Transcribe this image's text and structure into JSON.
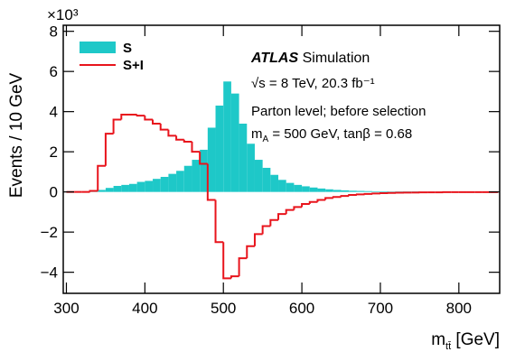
{
  "chart_data": {
    "type": "histogram",
    "y_multiplier": "×10³",
    "xlabel": [
      "m",
      "tt̄",
      " [GeV]"
    ],
    "ylabel": "Events / 10 GeV",
    "annotations": {
      "experiment": "ATLAS",
      "kind": "Simulation",
      "energy": "√s = 8 TeV, 20.3 fb⁻¹",
      "level": "Parton level; before selection",
      "params": [
        "m",
        "A",
        " = 500 GeV, tanβ = 0.68"
      ]
    },
    "bins": [
      300,
      310,
      320,
      330,
      340,
      350,
      360,
      370,
      380,
      390,
      400,
      410,
      420,
      430,
      440,
      450,
      460,
      470,
      480,
      490,
      500,
      510,
      520,
      530,
      540,
      550,
      560,
      570,
      580,
      590,
      600,
      610,
      620,
      630,
      640,
      650,
      660,
      670,
      680,
      690,
      700,
      710,
      720,
      730,
      740,
      750,
      760,
      770,
      780,
      790,
      800,
      810,
      820,
      830,
      840,
      850
    ],
    "series": [
      {
        "name": "S",
        "color": "#1ec8c8",
        "style": "filled",
        "values": [
          0,
          0,
          0,
          0.02,
          0.1,
          0.2,
          0.3,
          0.35,
          0.4,
          0.5,
          0.55,
          0.65,
          0.75,
          0.9,
          1.05,
          1.3,
          1.6,
          2.1,
          3.2,
          4.3,
          5.5,
          4.9,
          3.4,
          2.4,
          1.6,
          1.2,
          0.85,
          0.6,
          0.45,
          0.35,
          0.28,
          0.22,
          0.17,
          0.13,
          0.1,
          0.08,
          0.06,
          0.05,
          0.04,
          0.03,
          0.03,
          0.02,
          0.02,
          0.02,
          0.02,
          0.01,
          0.01,
          0.01,
          0.01,
          0.01,
          0.01,
          0.01,
          0.01,
          0.01,
          0.01
        ]
      },
      {
        "name": "S+I",
        "color": "#e8141c",
        "style": "step",
        "values": [
          0,
          0,
          0,
          0.05,
          1.3,
          2.9,
          3.6,
          3.85,
          3.85,
          3.8,
          3.6,
          3.4,
          3.1,
          2.8,
          2.6,
          2.5,
          2.0,
          1.4,
          -0.4,
          -2.5,
          -4.3,
          -4.2,
          -3.3,
          -2.7,
          -2.1,
          -1.7,
          -1.4,
          -1.1,
          -0.9,
          -0.75,
          -0.6,
          -0.5,
          -0.4,
          -0.3,
          -0.25,
          -0.2,
          -0.15,
          -0.12,
          -0.1,
          -0.08,
          -0.06,
          -0.05,
          -0.04,
          -0.03,
          -0.03,
          -0.02,
          -0.02,
          -0.02,
          -0.01,
          -0.01,
          -0.01,
          -0.01,
          -0.01,
          -0.01,
          -0.01
        ]
      }
    ],
    "xlim": [
      296,
      852
    ],
    "ylim": [
      -5.05,
      8.3
    ],
    "xticks": [
      300,
      400,
      500,
      600,
      700,
      800
    ],
    "yticks": [
      {
        "value": -4,
        "label": "−4"
      },
      {
        "value": -2,
        "label": "−2"
      },
      0,
      2,
      4,
      6,
      8
    ]
  }
}
